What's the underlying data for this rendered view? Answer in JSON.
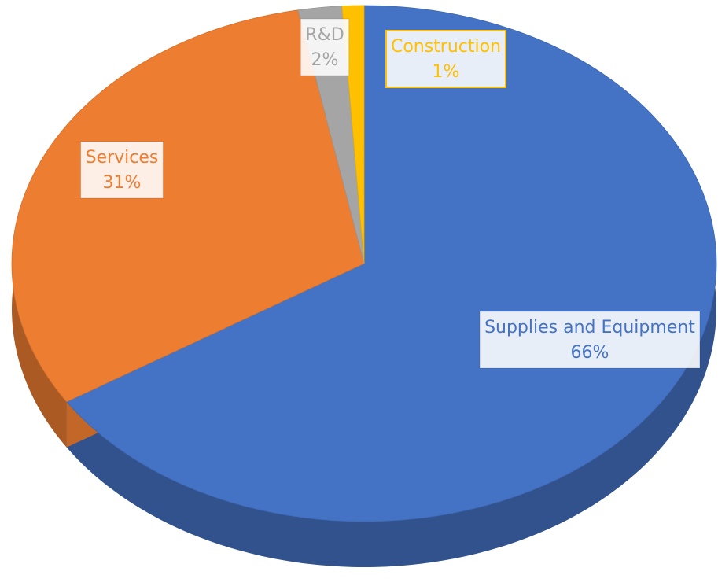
{
  "chart_data": {
    "type": "pie",
    "categories": [
      "Supplies and Equipment",
      "Services",
      "R&D",
      "Construction"
    ],
    "values": [
      66,
      31,
      2,
      1
    ],
    "value_labels": [
      "66%",
      "31%",
      "2%",
      "1%"
    ],
    "colors": [
      "#4472c4",
      "#ed7d31",
      "#a5a5a5",
      "#ffc000"
    ]
  }
}
